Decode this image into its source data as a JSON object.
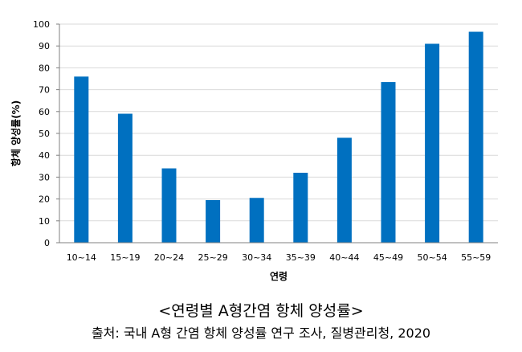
{
  "chart_data": {
    "type": "bar",
    "categories": [
      "10~14",
      "15~19",
      "20~24",
      "25~29",
      "30~34",
      "35~39",
      "40~44",
      "45~49",
      "50~54",
      "55~59"
    ],
    "values": [
      76,
      59,
      34,
      19.5,
      20.5,
      32,
      48,
      73.5,
      91,
      96.5
    ],
    "ylim": [
      0,
      100
    ],
    "yticks": [
      0,
      10,
      20,
      30,
      40,
      50,
      60,
      70,
      80,
      90,
      100
    ],
    "xlabel": "연령",
    "ylabel": "항체 양성률(%)",
    "grid": true,
    "legend": "none",
    "bar_color": "#0070C0",
    "grid_color": "#D9D9D9",
    "axis_color": "#808080"
  },
  "caption": {
    "title": "<연령별 A형간염 항체 양성률>",
    "source": "출처: 국내 A형 간염 항체 양성률 연구 조사, 질병관리청, 2020"
  }
}
